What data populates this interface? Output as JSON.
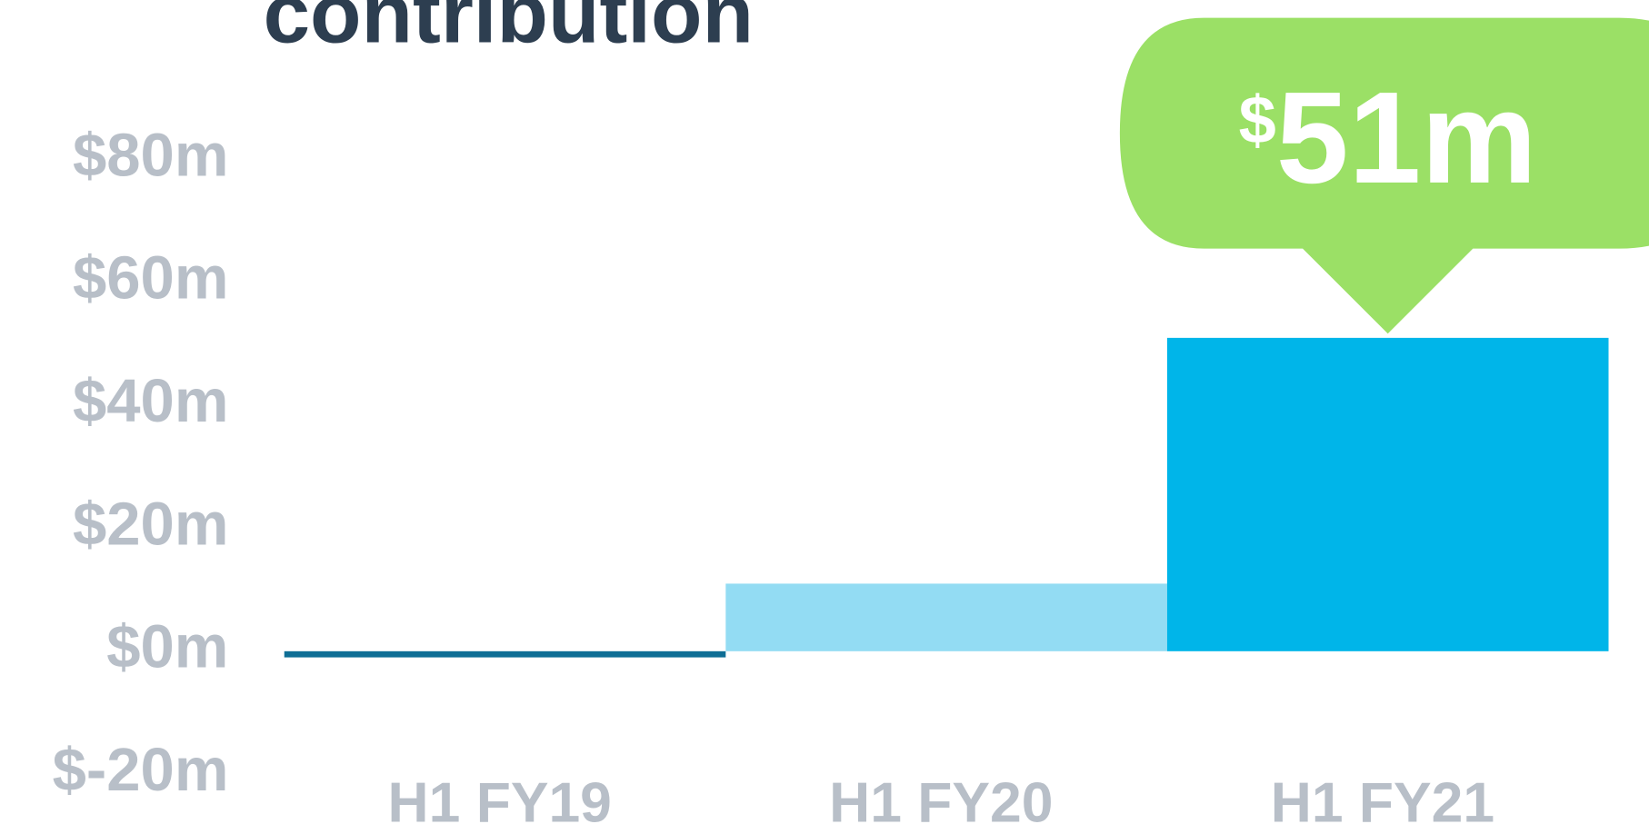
{
  "chart_data": {
    "type": "bar",
    "title": "contribution",
    "categories": [
      "H1 FY19",
      "H1 FY20",
      "H1 FY21"
    ],
    "values": [
      -1,
      11,
      51
    ],
    "value_labels": [
      null,
      null,
      "$51m"
    ],
    "colors": [
      "#0e6e95",
      "#93dcf3",
      "#00b5e9"
    ],
    "callout_color": "#9be066",
    "ylim": [
      -20,
      80
    ],
    "yticks": [
      {
        "value": -20,
        "label": "$-20m"
      },
      {
        "value": 0,
        "label": "$0m"
      },
      {
        "value": 20,
        "label": "$20m"
      },
      {
        "value": 40,
        "label": "$40m"
      },
      {
        "value": 60,
        "label": "$60m"
      },
      {
        "value": 80,
        "label": "$80m"
      }
    ],
    "grid": false
  }
}
